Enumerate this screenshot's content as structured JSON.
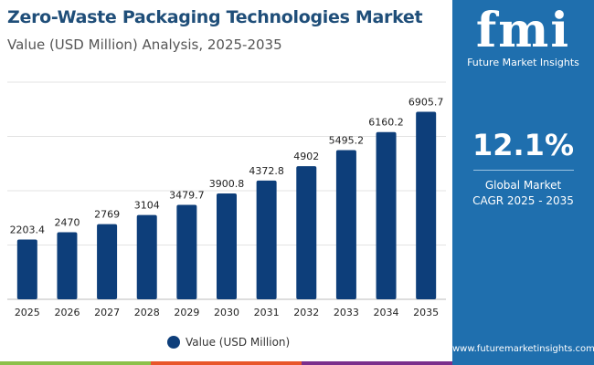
{
  "header": {
    "title": "Zero-Waste Packaging Technologies Market",
    "subtitle": "Value (USD Million) Analysis, 2025-2035"
  },
  "sidepanel": {
    "logo_text": "fmi",
    "logo_name": "Future Market Insights",
    "cagr_value": "12.1%",
    "cagr_label_1": "Global Market",
    "cagr_label_2": "CAGR 2025 - 2035",
    "url": "www.futuremarketinsights.com"
  },
  "colors": {
    "bar": "#0d3e7a",
    "panel": "#1f6fae",
    "strip": [
      "#8cc04a",
      "#e8562a",
      "#7b2f8c"
    ]
  },
  "chart_data": {
    "type": "bar",
    "title": "",
    "xlabel": "",
    "ylabel": "",
    "categories": [
      "2025",
      "2026",
      "2027",
      "2028",
      "2029",
      "2030",
      "2031",
      "2032",
      "2033",
      "2034",
      "2035"
    ],
    "series": [
      {
        "name": "Value (USD Million)",
        "values": [
          2203.4,
          2470,
          2769,
          3104,
          3479.7,
          3900.8,
          4372.8,
          4902,
          5495.2,
          6160.2,
          6905.7
        ]
      }
    ],
    "data_labels": [
      "2203.4",
      "2470",
      "2769",
      "3104",
      "3479.7",
      "3900.8",
      "4372.8",
      "4902",
      "5495.2",
      "6160.2",
      "6905.7"
    ],
    "ylim": [
      0,
      8000
    ],
    "grid": true,
    "legend": "bottom"
  }
}
